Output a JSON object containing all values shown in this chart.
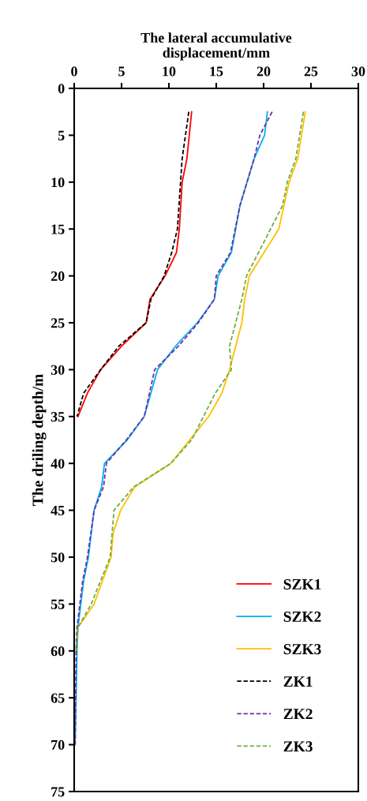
{
  "chart_data": {
    "type": "line",
    "orientation": "horizontal",
    "xlabel": "The lateral accumulative\ndisplacement/mm",
    "ylabel": "The driling depth/m",
    "xlim": [
      0,
      30
    ],
    "xticks": [
      0,
      5,
      10,
      15,
      20,
      25,
      30
    ],
    "ylim": [
      75,
      0
    ],
    "yticks": [
      0,
      5,
      10,
      15,
      20,
      25,
      30,
      35,
      40,
      45,
      50,
      55,
      60,
      65,
      70,
      75
    ],
    "grid": false,
    "legend": "bottom right",
    "marker": "none",
    "series": [
      {
        "name": "SZK1",
        "color": "#ff0000",
        "line_style": "solid",
        "x": [
          2.5,
          7.5,
          10,
          15,
          17.5,
          20,
          22.5,
          25,
          27.5,
          30,
          32.5,
          35
        ],
        "values": [
          12.4,
          11.9,
          11.4,
          11.1,
          10.8,
          9.6,
          8.0,
          7.6,
          5.0,
          2.8,
          1.4,
          0.4
        ]
      },
      {
        "name": "SZK2",
        "color": "#00b0f0",
        "line_style": "solid",
        "x": [
          2.5,
          5,
          7.5,
          12.5,
          17.5,
          20,
          22.5,
          25,
          27.5,
          30,
          35,
          37.5,
          40,
          42.5,
          45,
          50,
          52.5,
          57.5,
          60,
          70
        ],
        "values": [
          20.4,
          20.1,
          19.0,
          17.5,
          16.6,
          15.2,
          14.8,
          13.0,
          10.7,
          8.8,
          7.4,
          5.6,
          3.2,
          2.9,
          2.1,
          1.5,
          1.0,
          0.4,
          0.3,
          0.1
        ]
      },
      {
        "name": "SZK3",
        "color": "#ffc000",
        "line_style": "solid",
        "x": [
          2.5,
          7.5,
          10,
          15,
          20,
          22.5,
          25,
          30,
          32.5,
          35,
          40,
          42.5,
          45,
          47.5,
          50,
          55,
          57.5,
          60
        ],
        "values": [
          24.4,
          23.6,
          22.7,
          21.6,
          18.5,
          18.0,
          17.7,
          16.4,
          15.6,
          14.2,
          10.2,
          6.4,
          4.9,
          4.1,
          3.9,
          2.1,
          0.4,
          0.2
        ]
      },
      {
        "name": "ZK1",
        "color": "#000000",
        "line_style": "dashed",
        "x": [
          2.5,
          7.5,
          15,
          17.5,
          20,
          22.5,
          25,
          27.5,
          30,
          32.5,
          35
        ],
        "values": [
          12.1,
          11.4,
          10.9,
          10.3,
          9.5,
          8.1,
          7.6,
          4.7,
          2.8,
          1.0,
          0.3
        ]
      },
      {
        "name": "ZK2",
        "color": "#7030a0",
        "line_style": "dashed",
        "x": [
          2.5,
          5,
          7.5,
          12.5,
          17.5,
          20,
          22.5,
          25,
          27.5,
          30,
          35,
          37.5,
          40,
          42.5,
          45,
          50,
          52.5,
          57.5,
          60,
          70
        ],
        "values": [
          20.9,
          19.6,
          19.0,
          17.5,
          16.5,
          15.0,
          14.8,
          13.1,
          11.0,
          8.5,
          7.4,
          5.5,
          3.4,
          3.1,
          2.1,
          1.4,
          0.9,
          0.3,
          0.2,
          0.1
        ]
      },
      {
        "name": "ZK3",
        "color": "#70ad47",
        "line_style": "dashed",
        "x": [
          2.5,
          7.5,
          10,
          12.5,
          20,
          22.5,
          27.5,
          30,
          32.5,
          37.5,
          40,
          42.5,
          45,
          50,
          55,
          57.5,
          60
        ],
        "values": [
          24.2,
          23.4,
          22.5,
          22.0,
          18.2,
          17.7,
          16.4,
          16.6,
          14.9,
          12.4,
          10.2,
          6.3,
          4.2,
          3.8,
          1.8,
          0.4,
          0.2
        ]
      }
    ]
  }
}
